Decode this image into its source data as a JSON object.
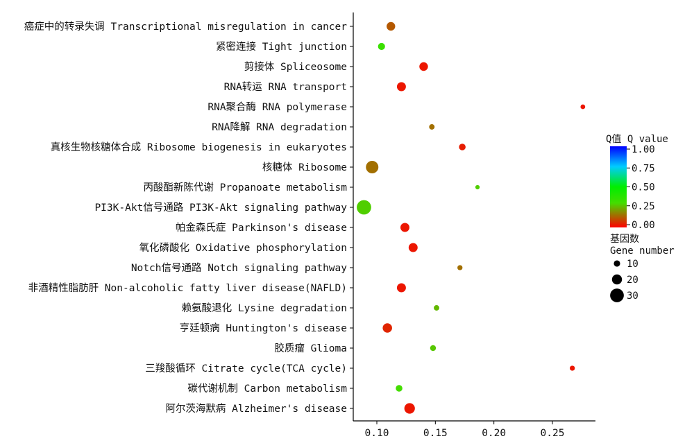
{
  "chart_data": {
    "type": "scatter",
    "title": "",
    "xlabel": "",
    "ylabel": "",
    "xlim": [
      0.085,
      0.29
    ],
    "x_ticks": [
      0.1,
      0.15,
      0.2,
      0.25
    ],
    "x_tick_labels": [
      "0.10",
      "0.15",
      "0.20",
      "0.25"
    ],
    "grid": false,
    "categories": [
      "癌症中的转录失调 Transcriptional misregulation in cancer",
      "紧密连接 Tight junction",
      "剪接体 Spliceosome",
      "RNA转运 RNA transport",
      "RNA聚合酶 RNA polymerase",
      "RNA降解 RNA degradation",
      "真核生物核糖体合成 Ribosome biogenesis in eukaryotes",
      "核糖体 Ribosome",
      "丙酸酯新陈代谢 Propanoate metabolism",
      "PI3K-Akt信号通路 PI3K-Akt signaling pathway",
      "帕金森氏症 Parkinson's disease",
      "氧化磷酸化 Oxidative phosphorylation",
      "Notch信号通路 Notch signaling pathway",
      "非酒精性脂肪肝 Non-alcoholic fatty liver disease(NAFLD)",
      "赖氨酸退化 Lysine degradation",
      "亨廷顿病 Huntington's disease",
      "胶质瘤 Glioma",
      "三羧酸循环 Citrate cycle(TCA cycle)",
      "碳代谢机制 Carbon metabolism",
      "阿尔茨海默病 Alzheimer's disease"
    ],
    "points": [
      {
        "x": 0.112,
        "gene_number": 15,
        "q_value": 0.12
      },
      {
        "x": 0.104,
        "gene_number": 11,
        "q_value": 0.33
      },
      {
        "x": 0.14,
        "gene_number": 15,
        "q_value": 0.03
      },
      {
        "x": 0.121,
        "gene_number": 16,
        "q_value": 0.03
      },
      {
        "x": 0.276,
        "gene_number": 5,
        "q_value": 0.03
      },
      {
        "x": 0.147,
        "gene_number": 7,
        "q_value": 0.15
      },
      {
        "x": 0.173,
        "gene_number": 10,
        "q_value": 0.04
      },
      {
        "x": 0.096,
        "gene_number": 25,
        "q_value": 0.15
      },
      {
        "x": 0.186,
        "gene_number": 4,
        "q_value": 0.28
      },
      {
        "x": 0.089,
        "gene_number": 30,
        "q_value": 0.28
      },
      {
        "x": 0.124,
        "gene_number": 16,
        "q_value": 0.03
      },
      {
        "x": 0.131,
        "gene_number": 16,
        "q_value": 0.03
      },
      {
        "x": 0.171,
        "gene_number": 6,
        "q_value": 0.15
      },
      {
        "x": 0.121,
        "gene_number": 16,
        "q_value": 0.03
      },
      {
        "x": 0.151,
        "gene_number": 7,
        "q_value": 0.25
      },
      {
        "x": 0.109,
        "gene_number": 17,
        "q_value": 0.05
      },
      {
        "x": 0.148,
        "gene_number": 8,
        "q_value": 0.27
      },
      {
        "x": 0.267,
        "gene_number": 6,
        "q_value": 0.03
      },
      {
        "x": 0.119,
        "gene_number": 10,
        "q_value": 0.3
      },
      {
        "x": 0.128,
        "gene_number": 20,
        "q_value": 0.03
      }
    ],
    "color_legend": {
      "title": "Q值 Q value",
      "ticks": [
        "1.00",
        "0.75",
        "0.50",
        "0.25",
        "0.00"
      ],
      "range": [
        0,
        1
      ],
      "colors": [
        "#0000ff",
        "#00ccff",
        "#00ee00",
        "#44dd00",
        "#ff0000"
      ]
    },
    "size_legend": {
      "title_line1": "基因数",
      "title_line2": "Gene number",
      "entries": [
        10,
        20,
        30
      ],
      "entry_labels": [
        "10",
        "20",
        "30"
      ]
    }
  }
}
